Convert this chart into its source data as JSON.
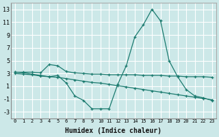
{
  "bg_color": "#cce8e8",
  "grid_color": "#ffffff",
  "line_color": "#1a7a6e",
  "xlabel": "Humidex (Indice chaleur)",
  "ylim": [
    -4,
    14
  ],
  "xlim": [
    -0.5,
    23.5
  ],
  "yticks": [
    -3,
    -1,
    1,
    3,
    5,
    7,
    9,
    11,
    13
  ],
  "xticks": [
    0,
    1,
    2,
    3,
    4,
    5,
    6,
    7,
    8,
    9,
    10,
    11,
    12,
    13,
    14,
    15,
    16,
    17,
    18,
    19,
    20,
    21,
    22,
    23
  ],
  "line1_x": [
    0,
    1,
    2,
    3,
    4,
    5,
    6,
    7,
    8,
    9,
    10,
    11,
    12,
    13,
    14,
    15,
    16,
    17,
    18,
    19,
    20,
    21,
    22,
    23
  ],
  "line1_y": [
    3.2,
    3.2,
    3.2,
    3.1,
    4.4,
    4.2,
    3.3,
    3.1,
    3.0,
    2.9,
    2.9,
    2.8,
    2.8,
    2.8,
    2.8,
    2.7,
    2.7,
    2.7,
    2.6,
    2.6,
    2.5,
    2.5,
    2.5,
    2.4
  ],
  "line2_x": [
    0,
    1,
    2,
    3,
    4,
    5,
    6,
    7,
    8,
    9,
    10,
    11,
    12,
    13,
    14,
    15,
    16,
    17,
    18,
    19,
    20,
    21,
    22,
    23
  ],
  "line2_y": [
    3.0,
    2.9,
    2.8,
    2.6,
    2.5,
    2.4,
    2.2,
    2.0,
    1.8,
    1.6,
    1.5,
    1.3,
    1.1,
    0.9,
    0.7,
    0.5,
    0.3,
    0.1,
    -0.1,
    -0.3,
    -0.5,
    -0.7,
    -0.9,
    -1.1
  ],
  "line3_x": [
    0,
    1,
    2,
    3,
    4,
    5,
    6,
    7,
    8,
    9,
    10,
    11,
    12,
    13,
    14,
    15,
    16,
    17,
    18,
    19,
    20,
    21,
    22,
    23
  ],
  "line3_y": [
    3.2,
    3.1,
    2.9,
    2.7,
    2.5,
    2.7,
    1.5,
    -0.5,
    -1.2,
    -2.5,
    -2.5,
    -2.5,
    1.3,
    4.2,
    8.7,
    10.6,
    13.0,
    11.2,
    5.0,
    2.5,
    0.5,
    -0.5,
    -0.8,
    -1.2
  ]
}
